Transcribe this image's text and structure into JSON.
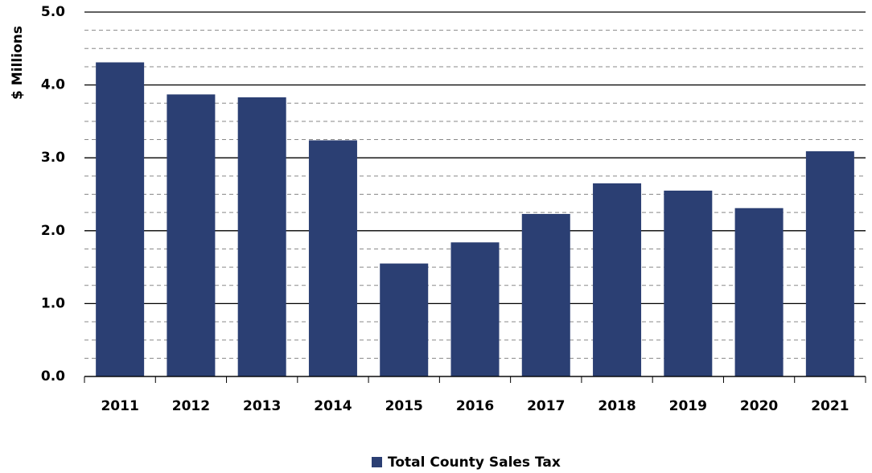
{
  "chart_data": {
    "type": "bar",
    "y_axis_label": "$ Millions",
    "categories": [
      "2011",
      "2012",
      "2013",
      "2014",
      "2015",
      "2016",
      "2017",
      "2018",
      "2019",
      "2020",
      "2021"
    ],
    "series": [
      {
        "name": "Total County Sales Tax",
        "color": "#2b3f73",
        "values": [
          4.31,
          3.87,
          3.83,
          3.24,
          1.55,
          1.84,
          2.23,
          2.65,
          2.55,
          2.31,
          3.09
        ]
      }
    ],
    "ylim": [
      0,
      5
    ],
    "yticks": [
      {
        "value": 0,
        "label": "0.0"
      },
      {
        "value": 1,
        "label": "1.0"
      },
      {
        "value": 2,
        "label": "2.0"
      },
      {
        "value": 3,
        "label": "3.0"
      },
      {
        "value": 4,
        "label": "4.0"
      },
      {
        "value": 5,
        "label": "5.0"
      }
    ],
    "yminorticks": [
      0.25,
      0.5,
      0.75,
      1.25,
      1.5,
      1.75,
      2.25,
      2.5,
      2.75,
      3.25,
      3.5,
      3.75,
      4.25,
      4.5,
      4.75
    ],
    "grid": true,
    "legend": "bottom"
  }
}
